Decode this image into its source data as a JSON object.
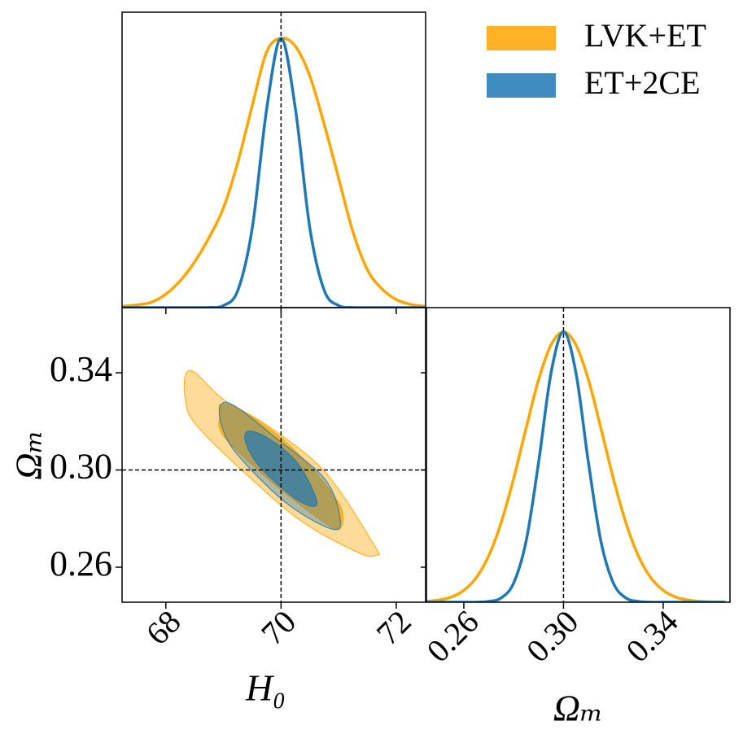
{
  "chart_data": [
    {
      "type": "line",
      "legend": "upper right",
      "x": [
        67.25,
        67.5,
        67.75,
        68,
        68.25,
        68.5,
        68.75,
        69,
        69.25,
        69.5,
        69.75,
        70,
        70.25,
        70.5,
        70.75,
        71,
        71.25,
        71.5,
        71.75,
        72,
        72.25,
        72.5
      ],
      "series": [
        {
          "name": "LVK+ET",
          "color": "#ffa500",
          "values": [
            0.005,
            0.01,
            0.02,
            0.05,
            0.1,
            0.17,
            0.26,
            0.37,
            0.54,
            0.75,
            0.95,
            1.0,
            0.97,
            0.86,
            0.68,
            0.48,
            0.28,
            0.14,
            0.07,
            0.03,
            0.012,
            0.005
          ]
        },
        {
          "name": "ET+2CE",
          "color": "#1f77b4",
          "values": [
            0,
            0,
            0,
            0,
            0,
            0,
            0.0005,
            0.0076,
            0.064,
            0.295,
            0.737,
            1.0,
            0.737,
            0.295,
            0.064,
            0.0076,
            0.0005,
            0,
            0,
            0,
            0,
            0
          ]
        }
      ],
      "xlim": [
        67.24,
        72.51
      ],
      "ylim": [
        0,
        1.097
      ],
      "xticks": [
        68,
        70,
        72
      ],
      "truth_x": 70
    },
    {
      "type": "contour",
      "xlabel": "H₀",
      "ylabel": "Ωₘ",
      "xlim": [
        67.24,
        72.51
      ],
      "ylim": [
        0.2456,
        0.3668
      ],
      "xticks": [
        68,
        70,
        72
      ],
      "yticks": [
        {
          "value": 0.26,
          "label": "0.26"
        },
        {
          "value": 0.3,
          "label": "0.30"
        },
        {
          "value": 0.34,
          "label": "0.34"
        }
      ],
      "truth_x": 70,
      "truth_y": 0.3,
      "series": [
        {
          "color": "#ffa500",
          "contours": [
            {
              "x": [
                68.34,
                68.51,
                69.0,
                69.78,
                70.77,
                71.62,
                71.65,
                71.34,
                70.35,
                69.36,
                68.51,
                68.34
              ],
              "y": [
                0.339,
                0.34,
                0.329,
                0.318,
                0.299,
                0.269,
                0.265,
                0.266,
                0.279,
                0.299,
                0.319,
                0.329
              ]
            },
            {
              "x": [
                68.96,
                69.36,
                70.2,
                70.99,
                71.03,
                70.71,
                69.79,
                69.0,
                68.94
              ],
              "y": [
                0.327,
                0.324,
                0.309,
                0.287,
                0.276,
                0.279,
                0.296,
                0.314,
                0.323
              ]
            }
          ]
        },
        {
          "color": "#1f77b4",
          "contours": [
            {
              "x": [
                68.96,
                69.22,
                69.92,
                70.77,
                71.03,
                70.84,
                70.06,
                69.22,
                68.96
              ],
              "y": [
                0.327,
                0.326,
                0.313,
                0.296,
                0.279,
                0.276,
                0.287,
                0.307,
                0.319
              ]
            },
            {
              "x": [
                69.43,
                69.78,
                70.28,
                70.6,
                70.56,
                70.2,
                69.64,
                69.39
              ],
              "y": [
                0.316,
                0.313,
                0.303,
                0.289,
                0.285,
                0.289,
                0.301,
                0.311
              ]
            }
          ]
        }
      ]
    },
    {
      "type": "line",
      "xlabel": "Ωₘ",
      "x": [
        0.245,
        0.25,
        0.255,
        0.26,
        0.265,
        0.27,
        0.275,
        0.28,
        0.285,
        0.29,
        0.295,
        0.3,
        0.305,
        0.31,
        0.315,
        0.32,
        0.325,
        0.33,
        0.335,
        0.34,
        0.345,
        0.35,
        0.355,
        0.36,
        0.365
      ],
      "series": [
        {
          "color": "#ffa500",
          "values": [
            0.003,
            0.008,
            0.019,
            0.044,
            0.091,
            0.172,
            0.295,
            0.458,
            0.644,
            0.823,
            0.952,
            1.0,
            0.952,
            0.823,
            0.644,
            0.458,
            0.295,
            0.172,
            0.091,
            0.044,
            0.019,
            0.008,
            0.003,
            0.001,
            0
          ]
        },
        {
          "color": "#1f77b4",
          "values": [
            0,
            0,
            0,
            0,
            0,
            0.003,
            0.016,
            0.071,
            0.226,
            0.517,
            0.848,
            1.0,
            0.848,
            0.517,
            0.226,
            0.071,
            0.016,
            0.003,
            0,
            0,
            0,
            0,
            0,
            0,
            0
          ]
        }
      ],
      "xlim": [
        0.245,
        0.3668
      ],
      "ylim": [
        0,
        1.09
      ],
      "xticks": [
        {
          "value": 0.26,
          "label": "0.26"
        },
        {
          "value": 0.3,
          "label": "0.30"
        },
        {
          "value": 0.34,
          "label": "0.34"
        }
      ],
      "truth_x": 0.3
    }
  ]
}
